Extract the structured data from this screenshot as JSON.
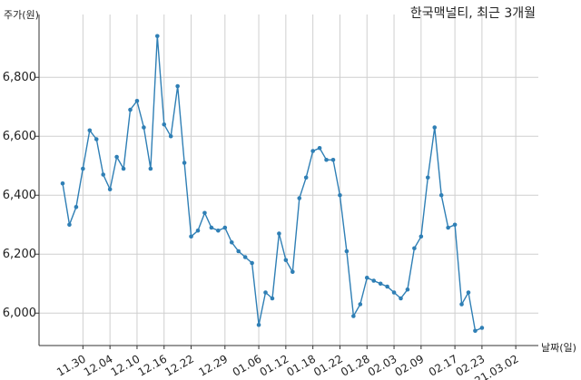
{
  "chart_data": {
    "type": "line",
    "title": "한국맥널티, 최근 3개월",
    "ylabel": "주가(원)",
    "xlabel": "날짜(일)",
    "ylim": [
      5890,
      6970
    ],
    "yticks": [
      6000,
      6200,
      6400,
      6600,
      6800
    ],
    "ytick_labels": [
      "6,000",
      "6,200",
      "6,400",
      "6,600",
      "6,800"
    ],
    "xtick_labels": [
      "11.30",
      "12.04",
      "12.10",
      "12.16",
      "12.22",
      "12.29",
      "01.06",
      "01.12",
      "01.18",
      "01.22",
      "01.28",
      "02.03",
      "02.09",
      "02.17",
      "02.23",
      "21.03.02"
    ],
    "xtick_index": [
      3,
      7,
      11,
      15,
      19,
      24,
      29,
      33,
      37,
      41,
      45,
      49,
      53,
      58,
      62,
      67
    ],
    "grid": true,
    "color": "#2f7fb5",
    "values": [
      6440,
      6300,
      6360,
      6490,
      6620,
      6590,
      6470,
      6420,
      6530,
      6490,
      6690,
      6720,
      6630,
      6490,
      6940,
      6640,
      6600,
      6770,
      6510,
      6260,
      6280,
      6340,
      6290,
      6280,
      6290,
      6240,
      6210,
      6190,
      6170,
      5960,
      6070,
      6050,
      6270,
      6180,
      6140,
      6390,
      6460,
      6550,
      6560,
      6520,
      6520,
      6400,
      6210,
      5990,
      6030,
      6120,
      6110,
      6100,
      6090,
      6070,
      6050,
      6080,
      6220,
      6260,
      6460,
      6630,
      6400,
      6290,
      6300,
      6030,
      6070,
      5940,
      5950
    ]
  }
}
